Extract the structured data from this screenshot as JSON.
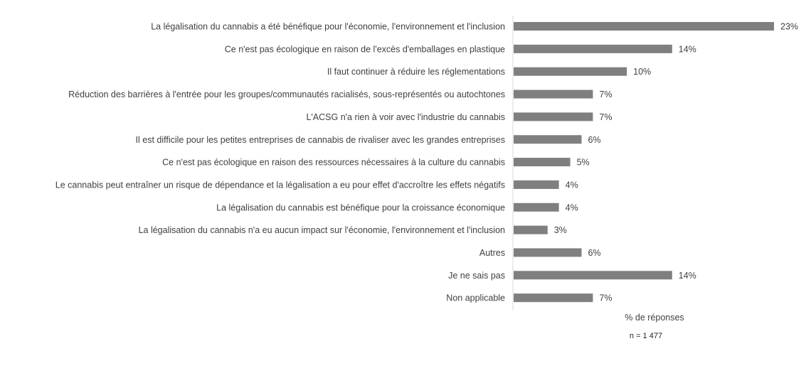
{
  "chart_data": {
    "type": "bar",
    "orientation": "horizontal",
    "categories": [
      "La légalisation du cannabis a été bénéfique pour l'économie, l'environnement et l'inclusion",
      "Ce n'est pas écologique en raison de l'excès d'emballages en plastique",
      "Il faut continuer à réduire les réglementations",
      "Réduction des barrières à l'entrée pour les groupes/communautés racialisés, sous-représentés ou autochtones",
      "L'ACSG n'a rien à voir avec l'industrie du cannabis",
      "Il est difficile pour les petites entreprises de cannabis de rivaliser avec les grandes entreprises",
      "Ce n'est pas écologique en raison des ressources nécessaires à la culture du cannabis",
      "Le cannabis peut entraîner un risque de dépendance et la légalisation a eu pour effet d'accroître les effets négatifs",
      "La légalisation du cannabis est bénéfique pour la croissance économique",
      "La légalisation du cannabis n'a eu aucun impact sur l'économie, l'environnement et l'inclusion",
      "Autres",
      "Je ne sais pas",
      "Non applicable"
    ],
    "values": [
      23,
      14,
      10,
      7,
      7,
      6,
      5,
      4,
      4,
      3,
      6,
      14,
      7
    ],
    "value_labels": [
      "23%",
      "14%",
      "10%",
      "7%",
      "7%",
      "6%",
      "5%",
      "4%",
      "4%",
      "3%",
      "6%",
      "14%",
      "7%"
    ],
    "xlabel": "% de réponses",
    "note": "n = 1 477",
    "xlim": [
      0,
      23
    ],
    "grid": false,
    "legend": "none",
    "bar_color": "#7f7f7f",
    "axis_color": "#d9d9d9",
    "text_color": "#404040"
  }
}
